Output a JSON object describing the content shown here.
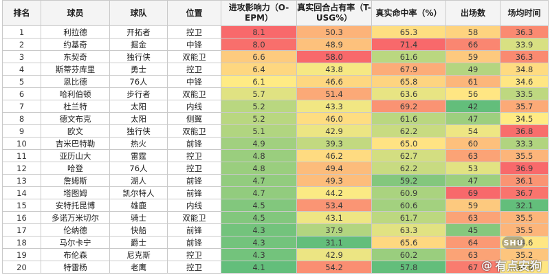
{
  "headers": [
    "排名",
    "球员",
    "球队",
    "位置",
    "进攻影响力（O-EPM）",
    "真实回合占有率（T-USG%）",
    "真实命中率（%）",
    "出场数",
    "场均时间"
  ],
  "rows": [
    [
      "1",
      "利拉德",
      "开拓者",
      "控卫",
      "8.1",
      "50.3",
      "65.3",
      "58",
      "36.3"
    ],
    [
      "2",
      "约基奇",
      "掘金",
      "中锋",
      "8.0",
      "48.9",
      "71.4",
      "66",
      "33.9"
    ],
    [
      "3",
      "东契奇",
      "独行侠",
      "双能卫",
      "6.6",
      "58.0",
      "61.6",
      "59",
      "36.3"
    ],
    [
      "4",
      "斯蒂芬库里",
      "勇士",
      "控卫",
      "6.4",
      "43.8",
      "67.9",
      "49",
      "34.8"
    ],
    [
      "5",
      "恩比德",
      "76人",
      "中锋",
      "6.1",
      "46.6",
      "65.8",
      "61",
      "34.6"
    ],
    [
      "6",
      "哈利伯顿",
      "步行者",
      "双能卫",
      "5.7",
      "51.4",
      "63.6",
      "56",
      "33.5"
    ],
    [
      "7",
      "杜兰特",
      "太阳",
      "内线",
      "5.2",
      "43.3",
      "69.2",
      "42",
      "35.7"
    ],
    [
      "8",
      "德文布克",
      "太阳",
      "侧翼",
      "5.2",
      "46.0",
      "61.6",
      "47",
      "34.5"
    ],
    [
      "9",
      "欧文",
      "独行侠",
      "双能卫",
      "5.1",
      "42.9",
      "62.2",
      "54",
      "36.8"
    ],
    [
      "10",
      "吉米巴特勒",
      "热火",
      "前锋",
      "4.9",
      "39.3",
      "65.0",
      "60",
      "33.3"
    ],
    [
      "11",
      "亚历山大",
      "雷霆",
      "控卫",
      "4.8",
      "46.2",
      "62.7",
      "63",
      "35.5"
    ],
    [
      "12",
      "哈登",
      "76人",
      "控卫",
      "4.8",
      "49.4",
      "62.2",
      "53",
      "36.9"
    ],
    [
      "13",
      "詹姆斯",
      "湖人",
      "前锋",
      "4.7",
      "49.3",
      "59.2",
      "47",
      "36.1"
    ],
    [
      "14",
      "塔图姆",
      "凯尔特人",
      "前锋",
      "4.7",
      "44.2",
      "60.9",
      "69",
      "36.7"
    ],
    [
      "15",
      "安特托昆博",
      "雄鹿",
      "内线",
      "4.5",
      "53.4",
      "60.6",
      "59",
      "32.1"
    ],
    [
      "16",
      "多诺万米切尔",
      "骑士",
      "双能卫",
      "4.5",
      "43.1",
      "61.7",
      "63",
      "35.5"
    ],
    [
      "17",
      "伦纳德",
      "快船",
      "前锋",
      "4.3",
      "37.9",
      "63.3",
      "45",
      "35.5"
    ],
    [
      "18",
      "马尔卡宁",
      "爵士",
      "前锋",
      "4.3",
      "31.1",
      "65.6",
      "64",
      "34.6"
    ],
    [
      "19",
      "布伦森",
      "尼克斯",
      "控卫",
      "4.3",
      "42.9",
      "60.2",
      "63",
      "35.2"
    ],
    [
      "20",
      "特雷杨",
      "老鹰",
      "控卫",
      "4.1",
      "54.2",
      "57.8",
      "67",
      "34.6"
    ]
  ],
  "heatmap": {
    "high_color": "#f8696b",
    "mid_color": "#ffeb84",
    "low_color": "#63be7b",
    "columns": [
      4,
      5,
      6,
      7,
      8
    ]
  },
  "watermark": {
    "at": "@",
    "text": "有点安狗",
    "badge": "SHU"
  }
}
